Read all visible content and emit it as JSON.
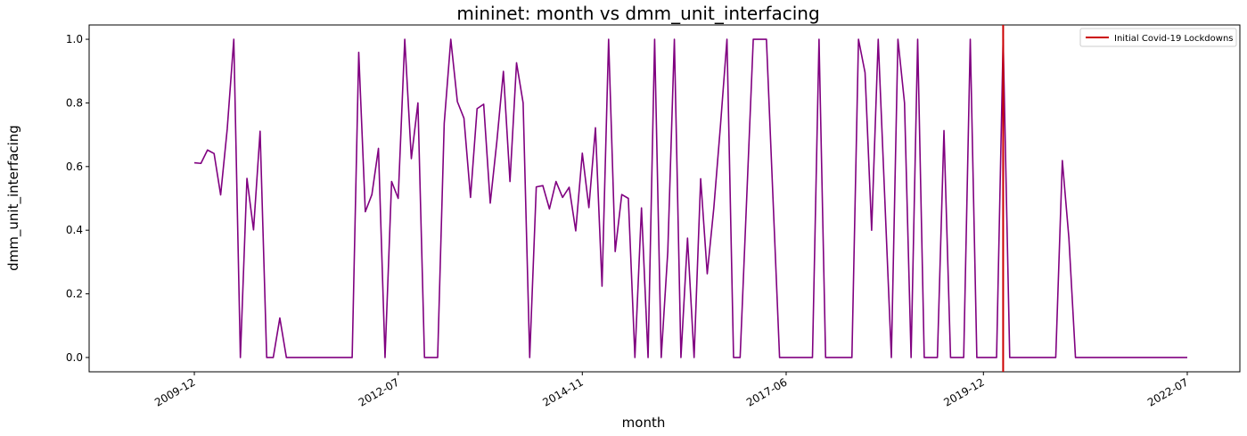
{
  "chart_data": {
    "type": "line",
    "title": "mininet: month vs dmm_unit_interfacing",
    "xlabel": "month",
    "ylabel": "dmm_unit_interfacing",
    "ylim": [
      -0.045,
      1.045
    ],
    "xlim": [
      "2008-08",
      "2023-03"
    ],
    "x_ticks": [
      "2009-12",
      "2012-07",
      "2014-11",
      "2017-06",
      "2019-12",
      "2022-07"
    ],
    "y_ticks": [
      "0.0",
      "0.2",
      "0.4",
      "0.6",
      "0.8",
      "1.0"
    ],
    "grid": false,
    "legend_position": "top-right",
    "series": [
      {
        "color": "#800080",
        "x": [
          "2009-12",
          "2010-01",
          "2010-02",
          "2010-03",
          "2010-04",
          "2010-05",
          "2010-06",
          "2010-07",
          "2010-08",
          "2010-09",
          "2010-10",
          "2010-11",
          "2010-12",
          "2011-01",
          "2011-02",
          "2011-03",
          "2011-04",
          "2011-05",
          "2011-06",
          "2011-07",
          "2011-08",
          "2011-09",
          "2011-10",
          "2011-11",
          "2011-12",
          "2012-01",
          "2012-02",
          "2012-03",
          "2012-04",
          "2012-05",
          "2012-06",
          "2012-07",
          "2012-08",
          "2012-09",
          "2012-10",
          "2012-11",
          "2012-12",
          "2013-01",
          "2013-02",
          "2013-03",
          "2013-04",
          "2013-05",
          "2013-06",
          "2013-07",
          "2013-08",
          "2013-09",
          "2013-10",
          "2013-11",
          "2013-12",
          "2014-01",
          "2014-02",
          "2014-03",
          "2014-04",
          "2014-05",
          "2014-06",
          "2014-07",
          "2014-08",
          "2014-09",
          "2014-10",
          "2014-11",
          "2014-12",
          "2015-01",
          "2015-02",
          "2015-03",
          "2015-04",
          "2015-05",
          "2015-06",
          "2015-07",
          "2015-08",
          "2015-09",
          "2015-10",
          "2015-11",
          "2015-12",
          "2016-01",
          "2016-02",
          "2016-03",
          "2016-04",
          "2016-05",
          "2016-06",
          "2016-07",
          "2016-08",
          "2016-09",
          "2016-10",
          "2016-11",
          "2016-12",
          "2017-01",
          "2017-02",
          "2017-03",
          "2017-04",
          "2017-05",
          "2017-06",
          "2017-07",
          "2017-08",
          "2017-09",
          "2017-10",
          "2017-11",
          "2017-12",
          "2018-01",
          "2018-02",
          "2018-03",
          "2018-04",
          "2018-05",
          "2018-06",
          "2018-07",
          "2018-08",
          "2018-09",
          "2018-10",
          "2018-11",
          "2018-12",
          "2019-01",
          "2019-02",
          "2019-03",
          "2019-04",
          "2019-05",
          "2019-06",
          "2019-07",
          "2019-08",
          "2019-09",
          "2019-10",
          "2019-11",
          "2019-12",
          "2020-01",
          "2020-02",
          "2020-03",
          "2020-04",
          "2020-05",
          "2020-06",
          "2020-07",
          "2020-08",
          "2020-09",
          "2020-10",
          "2020-11",
          "2020-12",
          "2021-01",
          "2021-02",
          "2021-03",
          "2021-04",
          "2021-05",
          "2021-06",
          "2021-07",
          "2021-08",
          "2021-09",
          "2021-10",
          "2021-11",
          "2021-12",
          "2022-01",
          "2022-02",
          "2022-03",
          "2022-04",
          "2022-05",
          "2022-06",
          "2022-07"
        ],
        "values": [
          0.612,
          0.61,
          0.652,
          0.641,
          0.511,
          0.718,
          1.0,
          0.0,
          0.563,
          0.401,
          0.711,
          0.0,
          0.0,
          0.124,
          0.0,
          0.0,
          0.0,
          0.0,
          0.0,
          0.0,
          0.0,
          0.0,
          0.0,
          0.0,
          0.0,
          0.959,
          0.458,
          0.512,
          0.657,
          0.0,
          0.553,
          0.5,
          1.0,
          0.625,
          0.8,
          0.0,
          0.0,
          0.0,
          0.736,
          1.0,
          0.804,
          0.752,
          0.503,
          0.782,
          0.796,
          0.485,
          0.678,
          0.899,
          0.553,
          0.926,
          0.8,
          0.0,
          0.536,
          0.54,
          0.467,
          0.553,
          0.503,
          0.535,
          0.398,
          0.642,
          0.471,
          0.722,
          0.224,
          1.0,
          0.333,
          0.512,
          0.5,
          0.0,
          0.47,
          0.0,
          1.0,
          0.0,
          0.333,
          1.0,
          0.0,
          0.375,
          0.0,
          0.562,
          0.263,
          0.47,
          0.726,
          1.0,
          0.0,
          0.0,
          0.5,
          1.0,
          1.0,
          1.0,
          0.5,
          0.0,
          0.0,
          0.0,
          0.0,
          0.0,
          0.0,
          1.0,
          0.0,
          0.0,
          0.0,
          0.0,
          0.0,
          1.0,
          0.895,
          0.4,
          1.0,
          0.5,
          0.0,
          1.0,
          0.8,
          0.0,
          1.0,
          0.0,
          0.0,
          0.0,
          0.713,
          0.0,
          0.0,
          0.0,
          1.0,
          0.0,
          0.0,
          0.0,
          0.0,
          1.0,
          0.0,
          0.0,
          0.0,
          0.0,
          0.0,
          0.0,
          0.0,
          0.0,
          0.619,
          0.375,
          0.0,
          0.0,
          0.0,
          0.0,
          0.0,
          0.0,
          0.0,
          0.0,
          0.0,
          0.0,
          0.0,
          0.0,
          0.0,
          0.0,
          0.0,
          0.0,
          0.0,
          0.0
        ]
      }
    ],
    "vline": {
      "x": "2020-03",
      "color": "#cc0000",
      "label": "Initial Covid-19 Lockdowns"
    }
  }
}
